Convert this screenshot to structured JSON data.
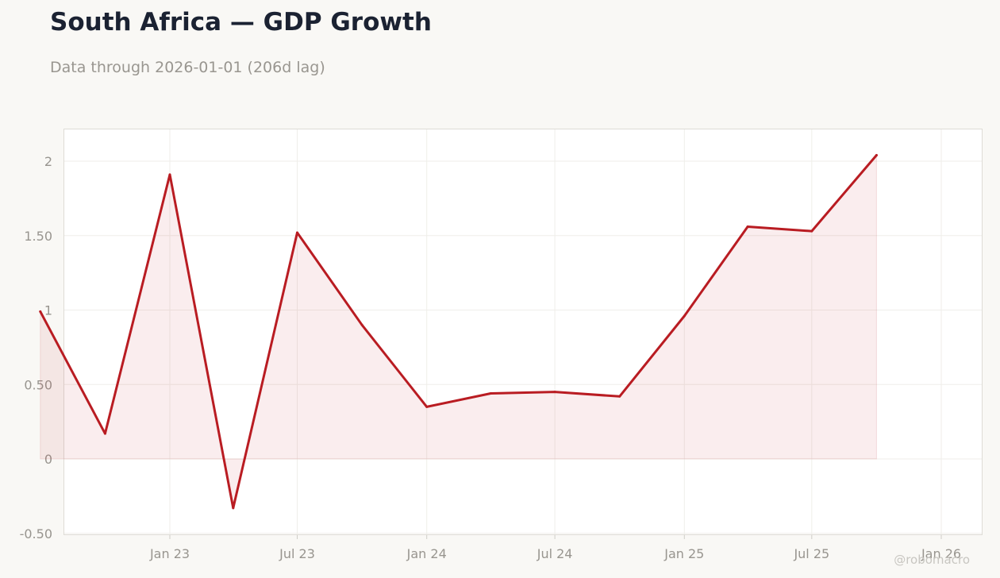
{
  "header": {
    "title": "South Africa — GDP Growth",
    "subtitle": "Data through 2026-01-01 (206d lag)"
  },
  "watermark": "@robomacro",
  "colors": {
    "line": "#b91c22",
    "fill": "#b91c22",
    "background": "#f9f8f5",
    "plot_background": "#ffffff",
    "grid": "#efeeea",
    "tick_text": "#98958f"
  },
  "chart_data": {
    "type": "area",
    "title": "South Africa — GDP Growth",
    "subtitle": "Data through 2026-01-01 (206d lag)",
    "xlabel": "",
    "ylabel": "",
    "grid": true,
    "x": [
      "2022-07-01",
      "2022-10-01",
      "2023-01-01",
      "2023-04-01",
      "2023-07-01",
      "2023-10-01",
      "2024-01-01",
      "2024-04-01",
      "2024-07-01",
      "2024-10-01",
      "2025-01-01",
      "2025-04-01",
      "2025-07-01",
      "2025-10-01",
      "2026-01-01"
    ],
    "series": [
      {
        "values": [
          0.99,
          0.17,
          1.91,
          -0.33,
          1.52,
          0.9,
          0.35,
          0.44,
          0.45,
          0.42,
          0.96,
          1.56,
          1.53,
          2.04,
          null
        ]
      }
    ],
    "ylim": [
      -0.5,
      2.2
    ],
    "yticks": [
      {
        "value": -0.5,
        "label": "-0.50"
      },
      {
        "value": 0,
        "label": "0"
      },
      {
        "value": 0.5,
        "label": "0.50"
      },
      {
        "value": 1,
        "label": "1"
      },
      {
        "value": 1.5,
        "label": "1.50"
      },
      {
        "value": 2,
        "label": "2"
      }
    ],
    "xticks": [
      {
        "date": "2023-01-01",
        "label": "Jan 23"
      },
      {
        "date": "2023-07-01",
        "label": "Jul 23"
      },
      {
        "date": "2024-01-01",
        "label": "Jan 24"
      },
      {
        "date": "2024-07-01",
        "label": "Jul 24"
      },
      {
        "date": "2025-01-01",
        "label": "Jan 25"
      },
      {
        "date": "2025-07-01",
        "label": "Jul 25"
      },
      {
        "date": "2026-01-01",
        "label": "Jan 26"
      }
    ]
  }
}
